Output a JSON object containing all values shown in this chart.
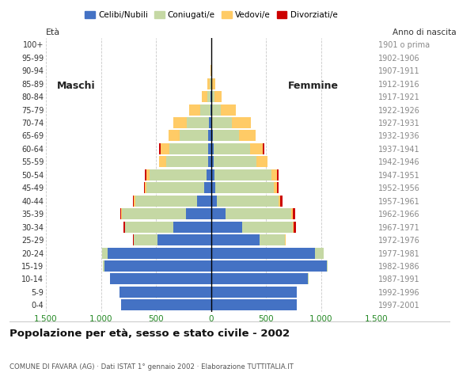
{
  "age_groups": [
    "0-4",
    "5-9",
    "10-14",
    "15-19",
    "20-24",
    "25-29",
    "30-34",
    "35-39",
    "40-44",
    "45-49",
    "50-54",
    "55-59",
    "60-64",
    "65-69",
    "70-74",
    "75-79",
    "80-84",
    "85-89",
    "90-94",
    "95-99",
    "100+"
  ],
  "birth_years": [
    "1997-2001",
    "1992-1996",
    "1987-1991",
    "1982-1986",
    "1977-1981",
    "1972-1976",
    "1967-1971",
    "1962-1966",
    "1957-1961",
    "1952-1956",
    "1947-1951",
    "1942-1946",
    "1937-1941",
    "1932-1936",
    "1927-1931",
    "1922-1926",
    "1917-1921",
    "1912-1916",
    "1907-1911",
    "1902-1906",
    "1901 o prima"
  ],
  "colors": {
    "celibe": "#4472C4",
    "coniugato": "#C5D8A4",
    "vedovo": "#FFCB66",
    "divorziato": "#CC0000"
  },
  "males": {
    "celibe": [
      820,
      830,
      920,
      970,
      940,
      490,
      340,
      230,
      130,
      60,
      40,
      30,
      30,
      25,
      20,
      8,
      3,
      2,
      0,
      0,
      0
    ],
    "coniugato": [
      0,
      0,
      1,
      10,
      50,
      210,
      440,
      580,
      560,
      530,
      520,
      380,
      350,
      260,
      200,
      90,
      30,
      10,
      2,
      0,
      0
    ],
    "vedovo": [
      0,
      0,
      0,
      0,
      0,
      2,
      5,
      5,
      10,
      10,
      30,
      60,
      80,
      100,
      120,
      100,
      50,
      20,
      5,
      0,
      0
    ],
    "divorziato": [
      0,
      0,
      0,
      0,
      0,
      5,
      10,
      10,
      10,
      10,
      10,
      5,
      10,
      0,
      0,
      0,
      0,
      0,
      0,
      0,
      0
    ]
  },
  "females": {
    "nubile": [
      780,
      780,
      880,
      1050,
      940,
      440,
      280,
      130,
      50,
      40,
      30,
      20,
      20,
      15,
      10,
      5,
      2,
      2,
      0,
      0,
      0
    ],
    "coniugata": [
      0,
      0,
      2,
      10,
      80,
      230,
      460,
      600,
      560,
      530,
      520,
      390,
      330,
      240,
      180,
      80,
      25,
      8,
      2,
      0,
      0
    ],
    "vedova": [
      0,
      0,
      0,
      0,
      5,
      5,
      10,
      10,
      20,
      30,
      50,
      100,
      120,
      150,
      170,
      140,
      70,
      30,
      10,
      2,
      0
    ],
    "divorziata": [
      0,
      0,
      0,
      0,
      0,
      5,
      20,
      20,
      20,
      10,
      10,
      5,
      10,
      0,
      0,
      0,
      0,
      0,
      0,
      0,
      0
    ]
  },
  "xlim": 1500,
  "xticks": [
    -1500,
    -1000,
    -500,
    0,
    500,
    1000,
    1500
  ],
  "xticklabels": [
    "1.500",
    "1.000",
    "500",
    "0",
    "500",
    "1.000",
    "1.500"
  ],
  "title": "Popolazione per età, sesso e stato civile - 2002",
  "subtitle": "COMUNE DI FAVARA (AG) · Dati ISTAT 1° gennaio 2002 · Elaborazione TUTTITALIA.IT",
  "ylabel_eta": "Età",
  "ylabel_anno": "Anno di nascita",
  "legend_labels": [
    "Celibi/Nubili",
    "Coniugati/e",
    "Vedovi/e",
    "Divorziati/e"
  ],
  "bg_color": "#FFFFFF",
  "grid_color": "#BBBBBB",
  "bar_height": 0.85
}
